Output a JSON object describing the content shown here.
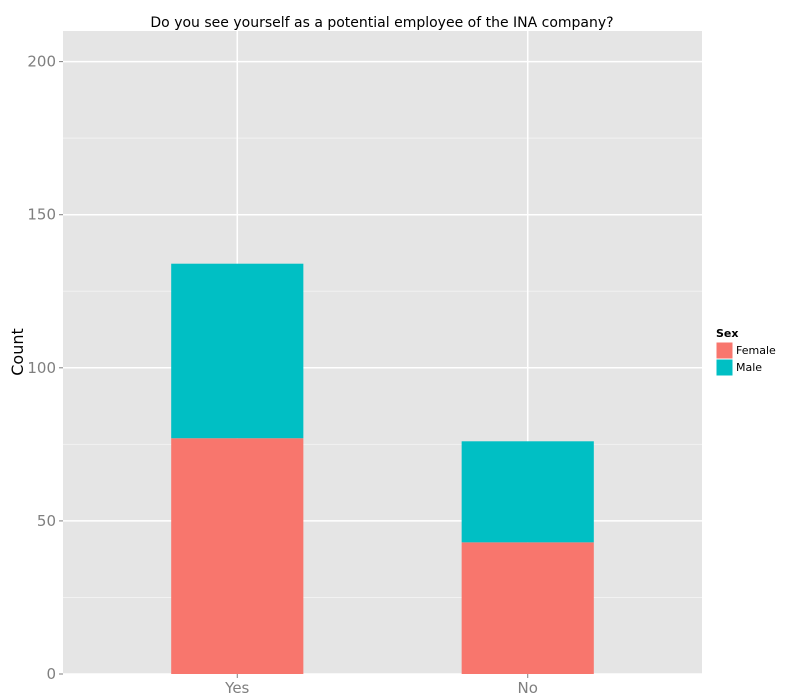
{
  "chart_data": {
    "type": "bar",
    "stacked": true,
    "title": "Do you see yourself as a potential employee of the INA company?",
    "xlabel": "",
    "ylabel": "Count",
    "categories": [
      "Yes",
      "No"
    ],
    "series": [
      {
        "name": "Female",
        "color": "#F8766D",
        "values": [
          77,
          43
        ]
      },
      {
        "name": "Male",
        "color": "#00BFC4",
        "values": [
          57,
          33
        ]
      }
    ],
    "ylim": [
      0,
      210
    ],
    "yticks": [
      0,
      50,
      100,
      150,
      200
    ],
    "grid": true,
    "legend": {
      "title": "Sex",
      "position": "right"
    },
    "colors": {
      "panel": "#E5E5E5",
      "grid_major": "#FFFFFF",
      "grid_minor": "#F2F2F2"
    }
  }
}
